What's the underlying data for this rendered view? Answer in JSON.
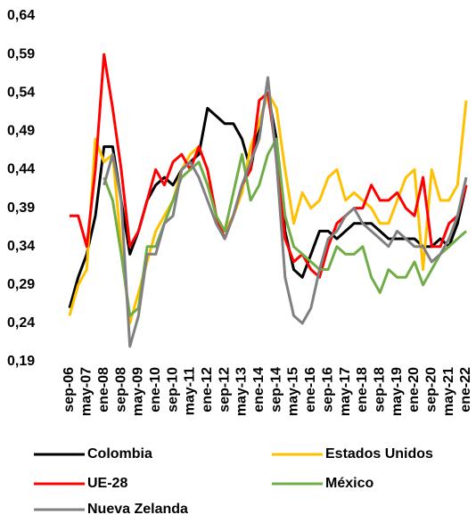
{
  "chart_data": {
    "type": "line",
    "categories": [
      "sep-06",
      null,
      "may-07",
      null,
      "ene-08",
      null,
      "sep-08",
      null,
      "may-09",
      null,
      "ene-10",
      null,
      "sep-10",
      null,
      "may-11",
      null,
      "ene-12",
      null,
      "sep-12",
      null,
      "may-13",
      null,
      "ene-14",
      null,
      "sep-14",
      null,
      "may-15",
      null,
      "ene-16",
      null,
      "sep-16",
      null,
      "may-17",
      null,
      "ene-18",
      null,
      "sep-18",
      null,
      "may-19",
      null,
      "ene-20",
      null,
      "sep-20",
      null,
      "may-21",
      null,
      "ene-22"
    ],
    "series": [
      {
        "name": "Colombia",
        "color": "#000000",
        "values": [
          0.26,
          0.3,
          0.33,
          0.38,
          0.47,
          0.47,
          0.4,
          0.33,
          0.36,
          0.4,
          0.42,
          0.43,
          0.42,
          0.44,
          0.45,
          0.46,
          0.52,
          0.51,
          0.5,
          0.5,
          0.48,
          0.44,
          0.5,
          0.54,
          0.48,
          0.36,
          0.31,
          0.3,
          0.33,
          0.36,
          0.36,
          0.35,
          0.36,
          0.37,
          0.37,
          0.37,
          0.36,
          0.35,
          0.35,
          0.35,
          0.35,
          0.34,
          0.34,
          0.35,
          0.34,
          0.37,
          0.42
        ]
      },
      {
        "name": "Estados Unidos",
        "color": "#ffc000",
        "values": [
          0.25,
          0.29,
          0.31,
          0.48,
          0.45,
          0.46,
          0.34,
          0.24,
          0.28,
          0.32,
          0.36,
          0.38,
          0.4,
          0.44,
          0.46,
          0.47,
          0.44,
          0.38,
          0.36,
          0.38,
          0.41,
          0.47,
          0.5,
          0.54,
          0.52,
          0.44,
          0.37,
          0.41,
          0.39,
          0.4,
          0.43,
          0.44,
          0.4,
          0.41,
          0.4,
          0.39,
          0.37,
          0.37,
          0.4,
          0.43,
          0.44,
          0.31,
          0.44,
          0.4,
          0.4,
          0.42,
          0.53
        ]
      },
      {
        "name": "UE-28",
        "color": "#ff0000",
        "values": [
          0.38,
          0.38,
          0.34,
          0.44,
          0.59,
          0.52,
          0.44,
          0.34,
          0.36,
          0.4,
          0.44,
          0.42,
          0.45,
          0.46,
          0.44,
          0.47,
          0.44,
          0.38,
          0.35,
          0.38,
          0.42,
          0.44,
          0.53,
          0.54,
          0.46,
          0.35,
          0.32,
          0.33,
          0.31,
          0.3,
          0.34,
          0.37,
          0.38,
          0.39,
          0.39,
          0.42,
          0.4,
          0.4,
          0.41,
          0.39,
          0.38,
          0.43,
          0.34,
          0.34,
          0.37,
          0.38,
          0.42
        ]
      },
      {
        "name": "México",
        "color": "#70ad47",
        "values": [
          null,
          null,
          null,
          null,
          0.43,
          0.4,
          0.33,
          0.25,
          0.26,
          0.34,
          0.34,
          0.37,
          0.4,
          0.43,
          0.44,
          0.45,
          0.42,
          0.38,
          0.36,
          0.41,
          0.46,
          0.4,
          0.42,
          0.46,
          0.48,
          0.38,
          0.34,
          0.33,
          0.32,
          0.31,
          0.31,
          0.34,
          0.33,
          0.33,
          0.34,
          0.3,
          0.28,
          0.31,
          0.3,
          0.3,
          0.32,
          0.29,
          0.31,
          0.33,
          0.34,
          0.35,
          0.36
        ]
      },
      {
        "name": "Nueva Zelanda",
        "color": "#808080",
        "values": [
          null,
          null,
          null,
          null,
          0.42,
          0.46,
          0.4,
          0.21,
          0.25,
          0.33,
          0.33,
          0.37,
          0.38,
          0.44,
          0.45,
          0.43,
          0.4,
          0.37,
          0.35,
          0.38,
          0.42,
          0.45,
          0.48,
          0.56,
          0.45,
          0.3,
          0.25,
          0.24,
          0.26,
          0.31,
          0.35,
          0.36,
          0.38,
          0.39,
          0.37,
          0.36,
          0.35,
          0.34,
          0.36,
          0.35,
          0.34,
          0.34,
          0.32,
          0.33,
          0.35,
          0.38,
          0.43
        ]
      }
    ],
    "ylim": [
      0.19,
      0.64
    ],
    "yticks": [
      {
        "value": 0.19,
        "label": "0,19"
      },
      {
        "value": 0.24,
        "label": "0,24"
      },
      {
        "value": 0.29,
        "label": "0,29"
      },
      {
        "value": 0.34,
        "label": "0,34"
      },
      {
        "value": 0.39,
        "label": "0,39"
      },
      {
        "value": 0.44,
        "label": "0,44"
      },
      {
        "value": 0.49,
        "label": "0,49"
      },
      {
        "value": 0.54,
        "label": "0,54"
      },
      {
        "value": 0.59,
        "label": "0,59"
      },
      {
        "value": 0.64,
        "label": "0,64"
      }
    ],
    "grid": false
  }
}
